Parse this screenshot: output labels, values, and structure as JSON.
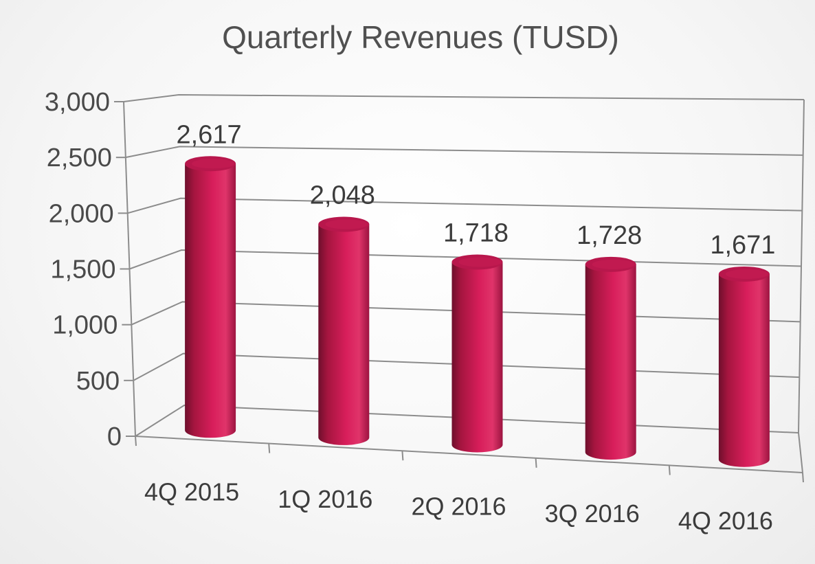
{
  "chart_data": {
    "type": "bar",
    "title": "Quarterly Revenues (TUSD)",
    "categories": [
      "4Q 2015",
      "1Q 2016",
      "2Q 2016",
      "3Q 2016",
      "4Q 2016"
    ],
    "values": [
      2617,
      2048,
      1718,
      1728,
      1671
    ],
    "data_labels": [
      "2,617",
      "2,048",
      "1,718",
      "1,728",
      "1,671"
    ],
    "y_ticks": [
      0,
      500,
      1000,
      1500,
      2000,
      2500,
      3000
    ],
    "y_tick_labels": [
      "0",
      "500",
      "1,000",
      "1,500",
      "2,000",
      "2,500",
      "3,000"
    ],
    "ylim": [
      0,
      3000
    ],
    "grid": true,
    "legend": "none",
    "bar_shape": "cylinder",
    "style": "3d",
    "colors": {
      "bar": "#d81e5b",
      "bar_dark": "#8f1238",
      "bar_top": "#b8174c"
    }
  }
}
